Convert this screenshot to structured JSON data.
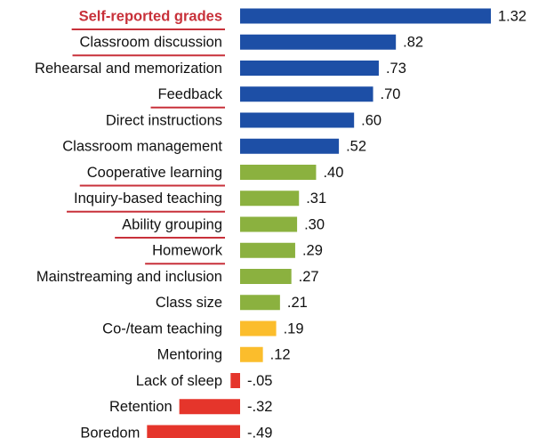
{
  "chart_data": {
    "type": "bar",
    "orientation": "horizontal",
    "categories": [
      "Self-reported grades",
      "Classroom discussion",
      "Rehearsal and memorization",
      "Feedback",
      "Direct instructions",
      "Classroom management",
      "Cooperative learning",
      "Inquiry-based teaching",
      "Ability grouping",
      "Homework",
      "Mainstreaming and inclusion",
      "Class size",
      "Co-/team teaching",
      "Mentoring",
      "Lack of sleep",
      "Retention",
      "Boredom"
    ],
    "values": [
      1.32,
      0.82,
      0.73,
      0.7,
      0.6,
      0.52,
      0.4,
      0.31,
      0.3,
      0.29,
      0.27,
      0.21,
      0.19,
      0.12,
      -0.05,
      -0.32,
      -0.49
    ],
    "value_labels": [
      "1.32",
      ".82",
      ".73",
      ".70",
      ".60",
      ".52",
      ".40",
      ".31",
      ".30",
      ".29",
      ".27",
      ".21",
      ".19",
      ".12",
      "-.05",
      "-.32",
      "-.49"
    ],
    "colors": [
      "#1d4fa6",
      "#1d4fa6",
      "#1d4fa6",
      "#1d4fa6",
      "#1d4fa6",
      "#1d4fa6",
      "#8bb13f",
      "#8bb13f",
      "#8bb13f",
      "#8bb13f",
      "#8bb13f",
      "#8bb13f",
      "#fbbd2c",
      "#fbbd2c",
      "#e5352b",
      "#e5352b",
      "#e5352b"
    ],
    "underlined": [
      true,
      true,
      false,
      true,
      false,
      false,
      true,
      true,
      true,
      true,
      false,
      false,
      false,
      false,
      false,
      false,
      false
    ]
  }
}
